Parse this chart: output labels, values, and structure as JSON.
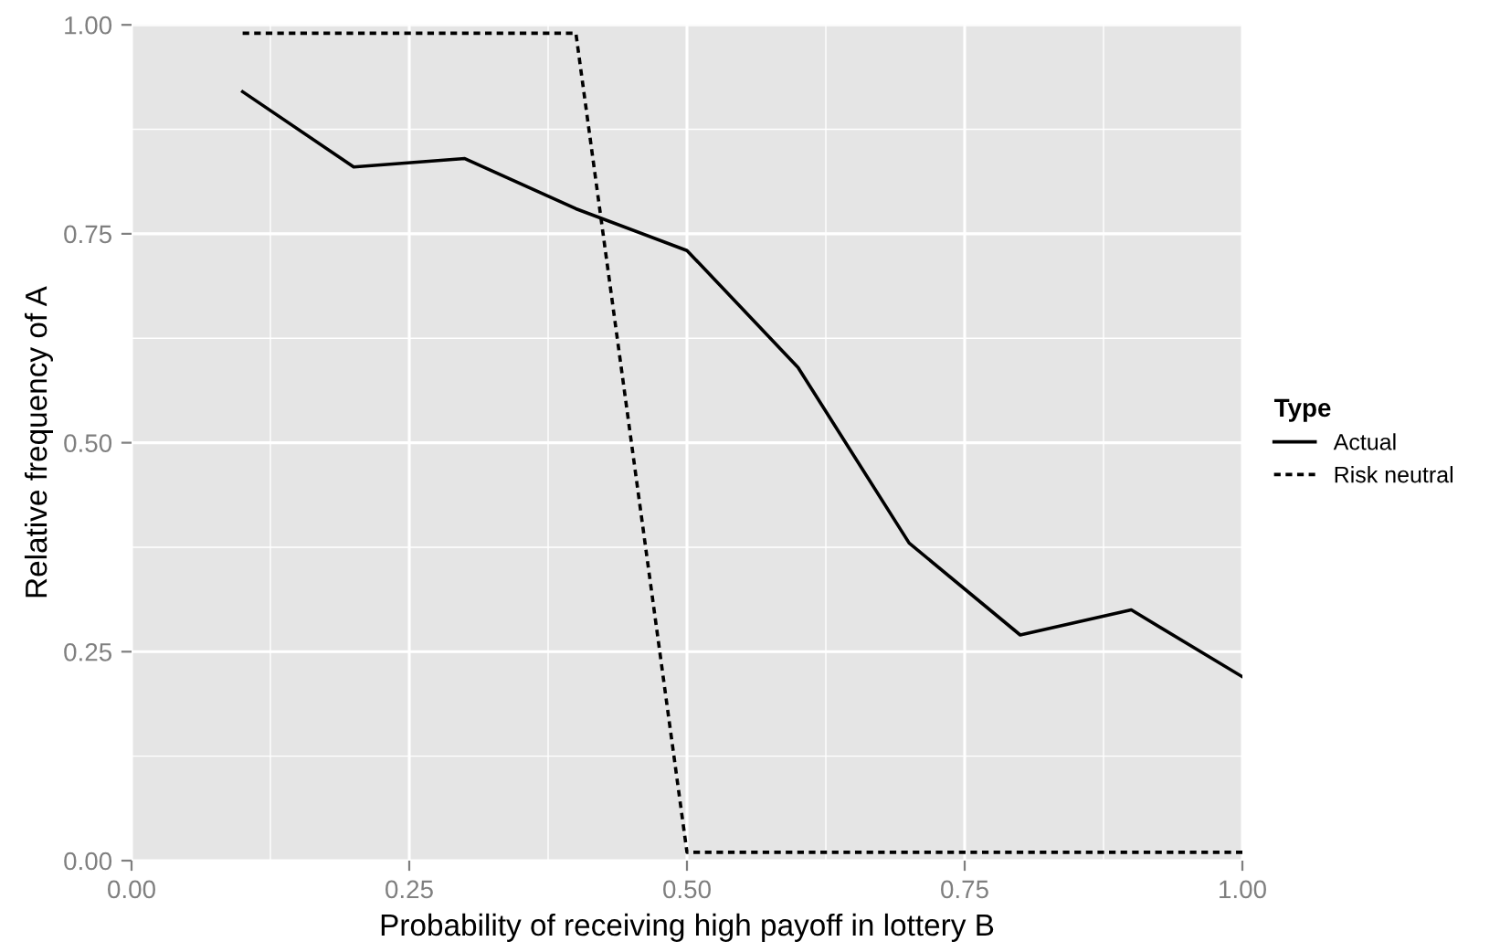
{
  "chart_data": {
    "type": "line",
    "xlabel": "Probability of receiving high payoff in lottery B",
    "ylabel": "Relative frequency of A",
    "legend_title": "Type",
    "x": [
      0.1,
      0.2,
      0.3,
      0.4,
      0.5,
      0.6,
      0.7,
      0.8,
      0.9,
      1.0
    ],
    "series": [
      {
        "name": "Actual",
        "color": "#000000",
        "line_style": "solid",
        "values": [
          0.92,
          0.83,
          0.84,
          0.78,
          0.73,
          0.59,
          0.38,
          0.27,
          0.3,
          0.22
        ]
      },
      {
        "name": "Risk neutral",
        "color": "#000000",
        "line_style": "dotted",
        "values": [
          0.99,
          0.99,
          0.99,
          0.99,
          0.01,
          0.01,
          0.01,
          0.01,
          0.01,
          0.01
        ]
      }
    ],
    "xlim": [
      0,
      1
    ],
    "ylim": [
      0,
      1
    ],
    "xticks": [
      {
        "value": 0,
        "label": "0.00"
      },
      {
        "value": 0.25,
        "label": "0.25"
      },
      {
        "value": 0.5,
        "label": "0.50"
      },
      {
        "value": 0.75,
        "label": "0.75"
      },
      {
        "value": 1,
        "label": "1.00"
      }
    ],
    "yticks": [
      {
        "value": 0,
        "label": "0.00"
      },
      {
        "value": 0.25,
        "label": "0.25"
      },
      {
        "value": 0.5,
        "label": "0.50"
      },
      {
        "value": 0.75,
        "label": "0.75"
      },
      {
        "value": 1,
        "label": "1.00"
      }
    ],
    "grid": true,
    "legend": "right",
    "marker": "none"
  }
}
